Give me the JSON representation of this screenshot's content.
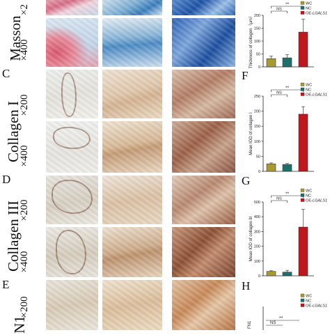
{
  "panels": {
    "masson": {
      "stain_label": "Masson",
      "mag_top": "×2",
      "mag_bottom": "×400",
      "chart_letter": ""
    },
    "c": {
      "letter": "C",
      "stain_label": "Collagen I",
      "mag_top": "×200",
      "mag_bottom": "×400",
      "chart_letter": "F"
    },
    "d": {
      "letter": "D",
      "stain_label": "Collagen III",
      "mag_top": "×200",
      "mag_bottom": "×400",
      "chart_letter": "G"
    },
    "e": {
      "letter": "E",
      "stain_label": "N1",
      "mag_top": "×200",
      "chart_letter": "H"
    }
  },
  "legend": {
    "wc": "WC",
    "nc": "NC",
    "oe": "OE-",
    "oe_gene": "LGALS1"
  },
  "significance": {
    "ns": "NS",
    "star": "**"
  },
  "colors": {
    "wc": "#a89a33",
    "nc": "#1f6f6a",
    "oe": "#c0171d"
  },
  "chart_data": [
    {
      "type": "bar",
      "categories": [
        "WC",
        "NC",
        "OE-LGALS1"
      ],
      "values": [
        32,
        35,
        135
      ],
      "errors": [
        10,
        12,
        50
      ],
      "ylabel": "Thickness of collagen（μm）",
      "yticks": [
        "0",
        "50",
        "100",
        "150",
        "200"
      ],
      "ylim": [
        0,
        200
      ]
    },
    {
      "type": "bar",
      "categories": [
        "WC",
        "NC",
        "OE-LGALS1"
      ],
      "values": [
        25,
        23,
        190
      ],
      "errors": [
        3,
        3,
        25
      ],
      "ylabel": "Mean IOD of collagen I",
      "yticks": [
        "0",
        "50",
        "100",
        "150",
        "200",
        "250"
      ],
      "ylim": [
        0,
        250
      ]
    },
    {
      "type": "bar",
      "categories": [
        "WC",
        "NC",
        "OE-LGALS1"
      ],
      "values": [
        30,
        25,
        330
      ],
      "errors": [
        4,
        12,
        120
      ],
      "ylabel": "Mean IOD of collagen III",
      "yticks": [
        "0",
        "100",
        "200",
        "300",
        "400",
        "500"
      ],
      "ylim": [
        0,
        500
      ]
    }
  ],
  "chart_h": {
    "ylabel": "FN1"
  }
}
